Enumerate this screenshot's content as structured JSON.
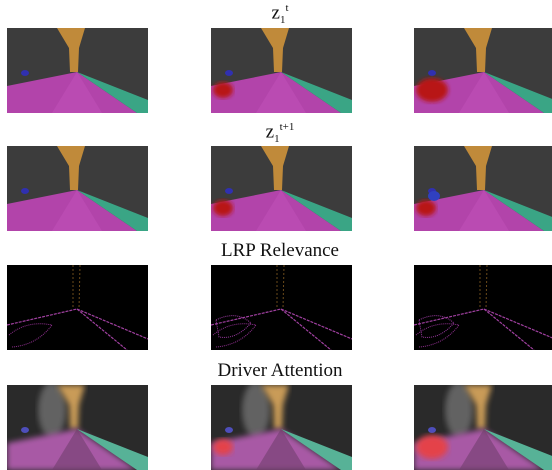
{
  "rows": [
    {
      "label": {
        "base": "z",
        "sub": "1",
        "sup": "t"
      }
    },
    {
      "label": {
        "base": "z",
        "sub": "1",
        "sup": "t+1"
      }
    },
    {
      "label": {
        "text": "LRP Relevance"
      }
    },
    {
      "label": {
        "text": "Driver Attention"
      }
    }
  ]
}
